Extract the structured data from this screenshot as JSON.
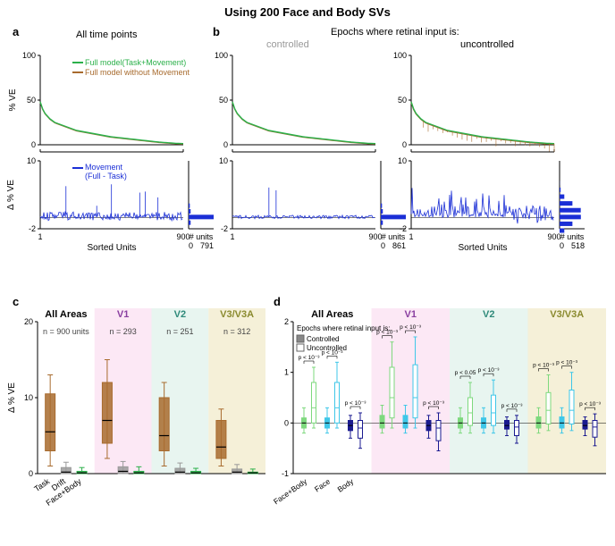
{
  "title": "Using 200 Face and Body SVs",
  "panels": {
    "a": {
      "label": "a",
      "subtitle": "All time points"
    },
    "b": {
      "label": "b",
      "subtitle": "Epochs where retinal input is:",
      "sub_left": "controlled",
      "sub_right": "uncontrolled"
    },
    "c": {
      "label": "c"
    },
    "d": {
      "label": "d"
    }
  },
  "colors": {
    "green": "#2bb04a",
    "brown": "#a86b2e",
    "blue": "#1b2fd6",
    "gray": "#9a9a9a",
    "olive": "#8a8a2e",
    "purple": "#8a3fa0",
    "teal": "#2f8a7a",
    "lightgreen": "#7ed97e",
    "cyan": "#3fc7e8",
    "darkblue": "#1a1a90",
    "panel_v1_bg": "#fce8f5",
    "panel_v2_bg": "#e8f5f0",
    "panel_v3_bg": "#f5f0d8"
  },
  "chart_a_top": {
    "ylabel": "% VE",
    "ylim": [
      0,
      100
    ],
    "yticks": [
      0,
      50,
      100
    ],
    "xlim": [
      1,
      900
    ],
    "xticks": [
      1,
      900
    ],
    "legend": [
      {
        "label": "Full model(Task+Movement)",
        "color_key": "green"
      },
      {
        "label": "Full model without Movement",
        "color_key": "brown"
      }
    ],
    "curve_green": [
      48,
      40,
      35,
      32,
      29,
      27,
      25,
      24,
      23,
      22,
      21,
      20,
      19,
      18,
      17,
      16,
      15.5,
      15,
      14.5,
      14,
      13.5,
      13,
      12.5,
      12,
      11.5,
      11,
      10.5,
      10,
      9.5,
      9,
      8.7,
      8.4,
      8.1,
      7.8,
      7.5,
      7.2,
      6.9,
      6.6,
      6.3,
      6,
      5.7,
      5.4,
      5.1,
      4.8,
      4.5,
      4.2,
      3.9,
      3.6,
      3.3,
      3,
      2.8,
      2.6,
      2.4,
      2.2,
      2,
      1.8,
      1.6,
      1.5,
      1.4,
      1.3
    ],
    "curve_brown_offset": 0.5
  },
  "chart_a_bot": {
    "ylabel": "Δ % VE",
    "ylim": [
      -2,
      10
    ],
    "yticks": [
      -2,
      10
    ],
    "xlabel": "Sorted Units",
    "xticks": [
      1,
      900
    ],
    "legend": [
      {
        "label": "Movement\n(Full - Task)",
        "color_key": "blue"
      }
    ],
    "hist_xlabel": "# units",
    "hist_max": 791
  },
  "chart_b_top": {
    "ylim": [
      0,
      100
    ],
    "yticks": [
      0,
      50,
      100
    ],
    "xticks": [
      1,
      900
    ]
  },
  "chart_b_bot_left": {
    "ylim": [
      -2,
      10
    ],
    "yticks": [
      -2,
      10
    ],
    "xticks": [
      1,
      900
    ],
    "hist_max": 861,
    "hist_xlabel": "# units"
  },
  "chart_b_bot_right": {
    "ylim": [
      -2,
      10
    ],
    "yticks": [
      -2,
      10
    ],
    "xticks": [
      1,
      900
    ],
    "hist_max": 518,
    "hist_xlabel": "# units",
    "xlabel": "Sorted Units"
  },
  "panel_c": {
    "ylabel": "Δ % VE",
    "ylim": [
      0,
      20
    ],
    "yticks": [
      0,
      10,
      20
    ],
    "areas": [
      {
        "name": "All Areas",
        "color": "#000000",
        "n": "n = 900 units",
        "bg": null
      },
      {
        "name": "V1",
        "color": "#8a3fa0",
        "n": "n = 293",
        "bg": "#fce8f5"
      },
      {
        "name": "V2",
        "color": "#2f8a7a",
        "n": "n = 251",
        "bg": "#e8f5f0"
      },
      {
        "name": "V3/V3A",
        "color": "#8a8a2e",
        "n": "n = 312",
        "bg": "#f5f0d8"
      }
    ],
    "categories": [
      "Task",
      "Drift",
      "Face+Body"
    ],
    "boxes": [
      {
        "area": 0,
        "cats": [
          {
            "color": "brown",
            "med": 5.5,
            "q1": 3,
            "q3": 10.5,
            "w0": 1,
            "w1": 13
          },
          {
            "color": "gray",
            "med": 0.2,
            "q1": 0,
            "q3": 0.8,
            "w0": 0,
            "w1": 1.5
          },
          {
            "color": "green",
            "med": 0.1,
            "q1": 0,
            "q3": 0.3,
            "w0": 0,
            "w1": 0.8
          }
        ]
      },
      {
        "area": 1,
        "cats": [
          {
            "color": "brown",
            "med": 7,
            "q1": 4,
            "q3": 12,
            "w0": 2,
            "w1": 15
          },
          {
            "color": "gray",
            "med": 0.3,
            "q1": 0,
            "q3": 0.9,
            "w0": 0,
            "w1": 1.6
          },
          {
            "color": "green",
            "med": 0.1,
            "q1": 0,
            "q3": 0.3,
            "w0": 0,
            "w1": 0.9
          }
        ]
      },
      {
        "area": 2,
        "cats": [
          {
            "color": "brown",
            "med": 5,
            "q1": 3,
            "q3": 10,
            "w0": 1,
            "w1": 12
          },
          {
            "color": "gray",
            "med": 0.2,
            "q1": 0,
            "q3": 0.7,
            "w0": 0,
            "w1": 1.4
          },
          {
            "color": "green",
            "med": 0.1,
            "q1": 0,
            "q3": 0.3,
            "w0": 0,
            "w1": 0.7
          }
        ]
      },
      {
        "area": 3,
        "cats": [
          {
            "color": "brown",
            "med": 3.5,
            "q1": 2,
            "q3": 7,
            "w0": 1,
            "w1": 8.5
          },
          {
            "color": "gray",
            "med": 0.2,
            "q1": 0,
            "q3": 0.6,
            "w0": 0,
            "w1": 1.2
          },
          {
            "color": "green",
            "med": 0.1,
            "q1": 0,
            "q3": 0.2,
            "w0": 0,
            "w1": 0.6
          }
        ]
      }
    ]
  },
  "panel_d": {
    "ylim": [
      -1,
      2
    ],
    "yticks": [
      -1,
      0,
      1,
      2
    ],
    "areas": [
      "All Areas",
      "V1",
      "V2",
      "V3/V3A"
    ],
    "legend_title": "Epochs where retinal input is:",
    "legend": [
      {
        "label": "Controlled",
        "filled": true
      },
      {
        "label": "Uncontrolled",
        "filled": false
      }
    ],
    "categories": [
      "Face+Body",
      "Face",
      "Body"
    ],
    "pvals": {
      "all": [
        "p < 10⁻³",
        "p < 10⁻³",
        "p < 10⁻³"
      ],
      "v1": [
        "p < 10⁻³",
        "p < 10⁻³",
        "p < 10⁻³"
      ],
      "v2": [
        "p < 0.05",
        "p < 10⁻³",
        "p < 10⁻³"
      ],
      "v3": [
        "p < 10⁻³",
        "p < 10⁻³",
        "p < 10⁻³"
      ]
    },
    "boxes": [
      {
        "area": 0,
        "cats": [
          [
            {
              "c": "lightgreen",
              "f": true,
              "med": 0,
              "q1": -0.1,
              "q3": 0.1,
              "w0": -0.2,
              "w1": 0.3
            },
            {
              "c": "lightgreen",
              "f": false,
              "med": 0.3,
              "q1": 0,
              "q3": 0.8,
              "w0": -0.1,
              "w1": 1.1
            }
          ],
          [
            {
              "c": "cyan",
              "f": true,
              "med": 0,
              "q1": -0.1,
              "q3": 0.1,
              "w0": -0.2,
              "w1": 0.3
            },
            {
              "c": "cyan",
              "f": false,
              "med": 0.3,
              "q1": 0,
              "q3": 0.8,
              "w0": -0.1,
              "w1": 1.2
            }
          ],
          [
            {
              "c": "darkblue",
              "f": true,
              "med": -0.05,
              "q1": -0.15,
              "q3": 0.05,
              "w0": -0.3,
              "w1": 0.15
            },
            {
              "c": "darkblue",
              "f": false,
              "med": -0.1,
              "q1": -0.3,
              "q3": 0.05,
              "w0": -0.5,
              "w1": 0.2
            }
          ]
        ]
      },
      {
        "area": 1,
        "cats": [
          [
            {
              "c": "lightgreen",
              "f": true,
              "med": 0,
              "q1": -0.1,
              "q3": 0.15,
              "w0": -0.2,
              "w1": 0.35
            },
            {
              "c": "lightgreen",
              "f": false,
              "med": 0.5,
              "q1": 0.1,
              "q3": 1.1,
              "w0": -0.1,
              "w1": 1.6
            }
          ],
          [
            {
              "c": "cyan",
              "f": true,
              "med": 0,
              "q1": -0.1,
              "q3": 0.15,
              "w0": -0.2,
              "w1": 0.35
            },
            {
              "c": "cyan",
              "f": false,
              "med": 0.5,
              "q1": 0.1,
              "q3": 1.15,
              "w0": -0.1,
              "w1": 1.7
            }
          ],
          [
            {
              "c": "darkblue",
              "f": true,
              "med": -0.05,
              "q1": -0.15,
              "q3": 0.05,
              "w0": -0.3,
              "w1": 0.15
            },
            {
              "c": "darkblue",
              "f": false,
              "med": -0.1,
              "q1": -0.35,
              "q3": 0.05,
              "w0": -0.55,
              "w1": 0.2
            }
          ]
        ]
      },
      {
        "area": 2,
        "cats": [
          [
            {
              "c": "lightgreen",
              "f": true,
              "med": 0,
              "q1": -0.1,
              "q3": 0.1,
              "w0": -0.2,
              "w1": 0.3
            },
            {
              "c": "lightgreen",
              "f": false,
              "med": 0.2,
              "q1": -0.05,
              "q3": 0.5,
              "w0": -0.2,
              "w1": 0.8
            }
          ],
          [
            {
              "c": "cyan",
              "f": true,
              "med": 0,
              "q1": -0.1,
              "q3": 0.1,
              "w0": -0.2,
              "w1": 0.3
            },
            {
              "c": "cyan",
              "f": false,
              "med": 0.2,
              "q1": -0.05,
              "q3": 0.55,
              "w0": -0.2,
              "w1": 0.85
            }
          ],
          [
            {
              "c": "darkblue",
              "f": true,
              "med": -0.05,
              "q1": -0.12,
              "q3": 0.05,
              "w0": -0.25,
              "w1": 0.12
            },
            {
              "c": "darkblue",
              "f": false,
              "med": -0.08,
              "q1": -0.25,
              "q3": 0.05,
              "w0": -0.4,
              "w1": 0.15
            }
          ]
        ]
      },
      {
        "area": 3,
        "cats": [
          [
            {
              "c": "lightgreen",
              "f": true,
              "med": 0,
              "q1": -0.1,
              "q3": 0.12,
              "w0": -0.2,
              "w1": 0.3
            },
            {
              "c": "lightgreen",
              "f": false,
              "med": 0.25,
              "q1": -0.02,
              "q3": 0.6,
              "w0": -0.15,
              "w1": 0.95
            }
          ],
          [
            {
              "c": "cyan",
              "f": true,
              "med": 0,
              "q1": -0.1,
              "q3": 0.12,
              "w0": -0.2,
              "w1": 0.3
            },
            {
              "c": "cyan",
              "f": false,
              "med": 0.25,
              "q1": -0.02,
              "q3": 0.65,
              "w0": -0.15,
              "w1": 1.0
            }
          ],
          [
            {
              "c": "darkblue",
              "f": true,
              "med": -0.05,
              "q1": -0.12,
              "q3": 0.05,
              "w0": -0.25,
              "w1": 0.12
            },
            {
              "c": "darkblue",
              "f": false,
              "med": -0.08,
              "q1": -0.28,
              "q3": 0.05,
              "w0": -0.45,
              "w1": 0.18
            }
          ]
        ]
      }
    ]
  }
}
